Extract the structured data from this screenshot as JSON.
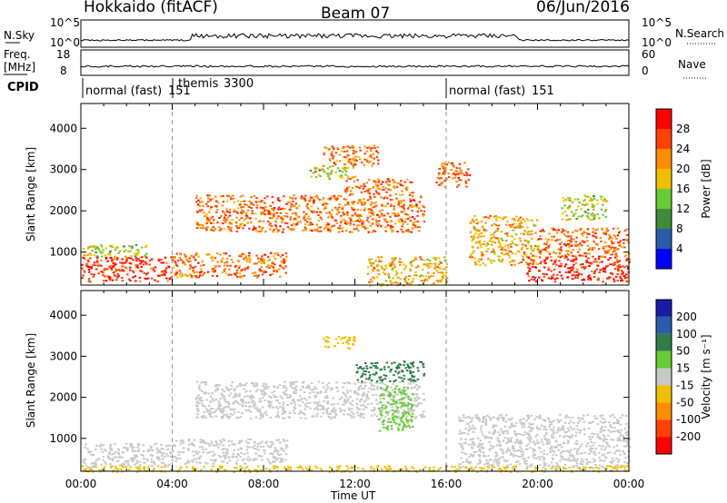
{
  "header": {
    "station": "Hokkaido (fitACF)",
    "beam": "Beam 07",
    "date": "06/Jun/2016"
  },
  "noise_panel": {
    "left_label": "N.Sky",
    "right_label": "N.Search",
    "left_ticks": [
      "10^5",
      "10^0"
    ],
    "right_ticks": [
      "10^5",
      "10^0"
    ]
  },
  "freq_panel": {
    "left_label_top": "Freq.",
    "left_label_unit": "[MHz]",
    "right_label": "Nave",
    "left_ticks": [
      "18",
      "8"
    ],
    "right_ticks": [
      "60",
      "0"
    ]
  },
  "cpid": {
    "label": "CPID",
    "segments": [
      {
        "name": "normal (fast)",
        "id": "151"
      },
      {
        "name": "themis",
        "id": "3300"
      },
      {
        "name": "normal (fast)",
        "id": "151"
      }
    ]
  },
  "chart_data": [
    {
      "type": "heatmap",
      "title": "",
      "xlabel": "Time UT",
      "ylabel": "Slant Range [km]",
      "x_ticks": [
        "00:00",
        "04:00",
        "08:00",
        "12:00",
        "16:00",
        "20:00",
        "00:00"
      ],
      "y_ticks": [
        1000,
        2000,
        3000,
        4000
      ],
      "ylim": [
        200,
        4600
      ],
      "colorbar": {
        "label": "Power [dB]",
        "levels": [
          4,
          8,
          12,
          16,
          20,
          24,
          28
        ],
        "colors": [
          "#0000ff",
          "#2a5caa",
          "#3c8c3c",
          "#66cc33",
          "#f0c000",
          "#ff8c00",
          "#ff4000",
          "#ff0000"
        ]
      },
      "regions": [
        {
          "t": [
            0.0,
            4.0
          ],
          "r": [
            300,
            900
          ],
          "v": 28
        },
        {
          "t": [
            0.0,
            3.0
          ],
          "r": [
            900,
            1200
          ],
          "v": 16
        },
        {
          "t": [
            4.0,
            9.0
          ],
          "r": [
            400,
            1000
          ],
          "v": 24
        },
        {
          "t": [
            5.0,
            15.0
          ],
          "r": [
            1500,
            2400
          ],
          "v": 24
        },
        {
          "t": [
            10.5,
            13.0
          ],
          "r": [
            3100,
            3600
          ],
          "v": 24
        },
        {
          "t": [
            11.5,
            14.5
          ],
          "r": [
            2400,
            2800
          ],
          "v": 24
        },
        {
          "t": [
            10.0,
            12.0
          ],
          "r": [
            2800,
            3100
          ],
          "v": 16
        },
        {
          "t": [
            12.5,
            16.0
          ],
          "r": [
            200,
            900
          ],
          "v": 20
        },
        {
          "t": [
            15.5,
            17.0
          ],
          "r": [
            2600,
            3200
          ],
          "v": 24
        },
        {
          "t": [
            17.0,
            20.0
          ],
          "r": [
            700,
            1900
          ],
          "v": 20
        },
        {
          "t": [
            19.5,
            24.0
          ],
          "r": [
            300,
            900
          ],
          "v": 28
        },
        {
          "t": [
            20.0,
            24.0
          ],
          "r": [
            900,
            1600
          ],
          "v": 24
        },
        {
          "t": [
            21.0,
            23.0
          ],
          "r": [
            1800,
            2400
          ],
          "v": 16
        }
      ]
    },
    {
      "type": "heatmap",
      "title": "",
      "xlabel": "Time UT",
      "ylabel": "Slant Range [km]",
      "x_ticks": [
        "00:00",
        "04:00",
        "08:00",
        "12:00",
        "16:00",
        "20:00",
        "00:00"
      ],
      "y_ticks": [
        1000,
        2000,
        3000,
        4000
      ],
      "ylim": [
        200,
        4600
      ],
      "colorbar": {
        "label": "Velocity [m s⁻¹]",
        "levels": [
          200,
          100,
          50,
          15,
          -15,
          -50,
          -100,
          -200
        ],
        "colors": [
          "#1a1aa8",
          "#2a5caa",
          "#2e7d4a",
          "#66cc33",
          "#c8c8c8",
          "#f0c000",
          "#ff8c00",
          "#ff4000",
          "#ff0000"
        ]
      },
      "regions": [
        {
          "t": [
            0.0,
            4.0
          ],
          "r": [
            300,
            900
          ],
          "v": 0
        },
        {
          "t": [
            5.0,
            15.0
          ],
          "r": [
            1500,
            2400
          ],
          "v": 0
        },
        {
          "t": [
            4.0,
            9.0
          ],
          "r": [
            400,
            1000
          ],
          "v": 0
        },
        {
          "t": [
            12.0,
            15.0
          ],
          "r": [
            2400,
            2900
          ],
          "v": 60
        },
        {
          "t": [
            13.0,
            14.5
          ],
          "r": [
            1200,
            2300
          ],
          "v": 25
        },
        {
          "t": [
            16.5,
            24.0
          ],
          "r": [
            300,
            1600
          ],
          "v": 0
        },
        {
          "t": [
            0.0,
            24.0
          ],
          "r": [
            200,
            350
          ],
          "v": -40
        },
        {
          "t": [
            10.5,
            12.0
          ],
          "r": [
            3200,
            3500
          ],
          "v": -30
        }
      ]
    }
  ],
  "colors": {
    "axis": "#000000",
    "dash": "#999999"
  }
}
